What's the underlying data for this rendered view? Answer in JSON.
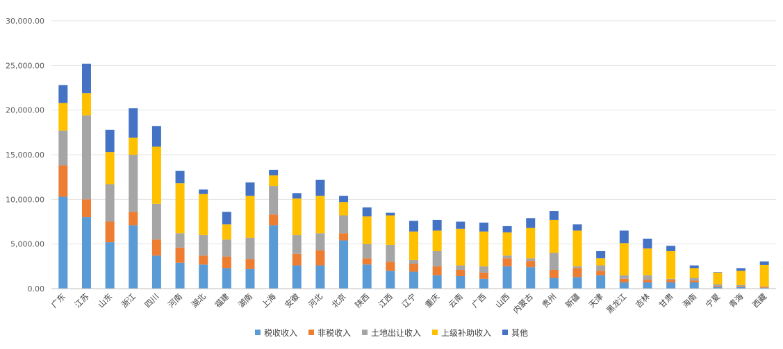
{
  "chart_data": {
    "type": "bar",
    "stacked": true,
    "title": "",
    "xlabel": "",
    "ylabel": "",
    "ylim": [
      0,
      30000
    ],
    "yticks": [
      "0.00",
      "5,000.00",
      "10,000.00",
      "15,000.00",
      "20,000.00",
      "25,000.00",
      "30,000.00"
    ],
    "grid": true,
    "legend_position": "bottom",
    "categories": [
      "广东",
      "江苏",
      "山东",
      "浙江",
      "四川",
      "河南",
      "湖北",
      "福建",
      "湖南",
      "上海",
      "安徽",
      "河北",
      "北京",
      "陕西",
      "江西",
      "辽宁",
      "重庆",
      "云南",
      "广西",
      "山西",
      "内蒙古",
      "贵州",
      "新疆",
      "天津",
      "黑龙江",
      "吉林",
      "甘肃",
      "海南",
      "宁夏",
      "青海",
      "西藏"
    ],
    "series": [
      {
        "name": "税收收入",
        "color": "#5b9bd5",
        "values": [
          10300,
          8000,
          5200,
          7100,
          3700,
          2900,
          2700,
          2300,
          2200,
          7100,
          2600,
          2600,
          5400,
          2700,
          2000,
          1900,
          1500,
          1400,
          1100,
          2500,
          2400,
          1200,
          1300,
          1500,
          700,
          700,
          700,
          700,
          200,
          200,
          100
        ]
      },
      {
        "name": "非税收入",
        "color": "#ed7d31",
        "values": [
          3500,
          2000,
          2300,
          1500,
          1800,
          1700,
          1000,
          1300,
          1100,
          1200,
          1300,
          1700,
          800,
          700,
          1000,
          900,
          1000,
          700,
          700,
          900,
          700,
          900,
          1000,
          500,
          400,
          300,
          300,
          200,
          100,
          100,
          100
        ]
      },
      {
        "name": "土地出让收入",
        "color": "#a5a5a5",
        "values": [
          3900,
          9400,
          4200,
          6400,
          4000,
          1600,
          2300,
          1900,
          2400,
          3200,
          2100,
          1900,
          2000,
          1600,
          1900,
          400,
          1700,
          500,
          700,
          300,
          300,
          1900,
          200,
          600,
          400,
          500,
          100,
          300,
          200,
          100,
          50
        ]
      },
      {
        "name": "上级补助收入",
        "color": "#ffc000",
        "values": [
          3100,
          2500,
          3600,
          1900,
          6400,
          5600,
          4600,
          1700,
          4700,
          1200,
          4100,
          4200,
          1500,
          3100,
          3300,
          3200,
          2300,
          4100,
          3900,
          2600,
          3400,
          3700,
          4000,
          800,
          3600,
          3000,
          3100,
          1100,
          1300,
          1600,
          2400
        ]
      },
      {
        "name": "其他",
        "color": "#4472c4",
        "values": [
          2000,
          3300,
          2500,
          3300,
          2300,
          1400,
          500,
          1400,
          1500,
          600,
          600,
          1800,
          700,
          1000,
          300,
          1200,
          1200,
          800,
          1000,
          700,
          1100,
          1000,
          700,
          800,
          1400,
          1100,
          600,
          300,
          50,
          300,
          400
        ]
      }
    ]
  }
}
